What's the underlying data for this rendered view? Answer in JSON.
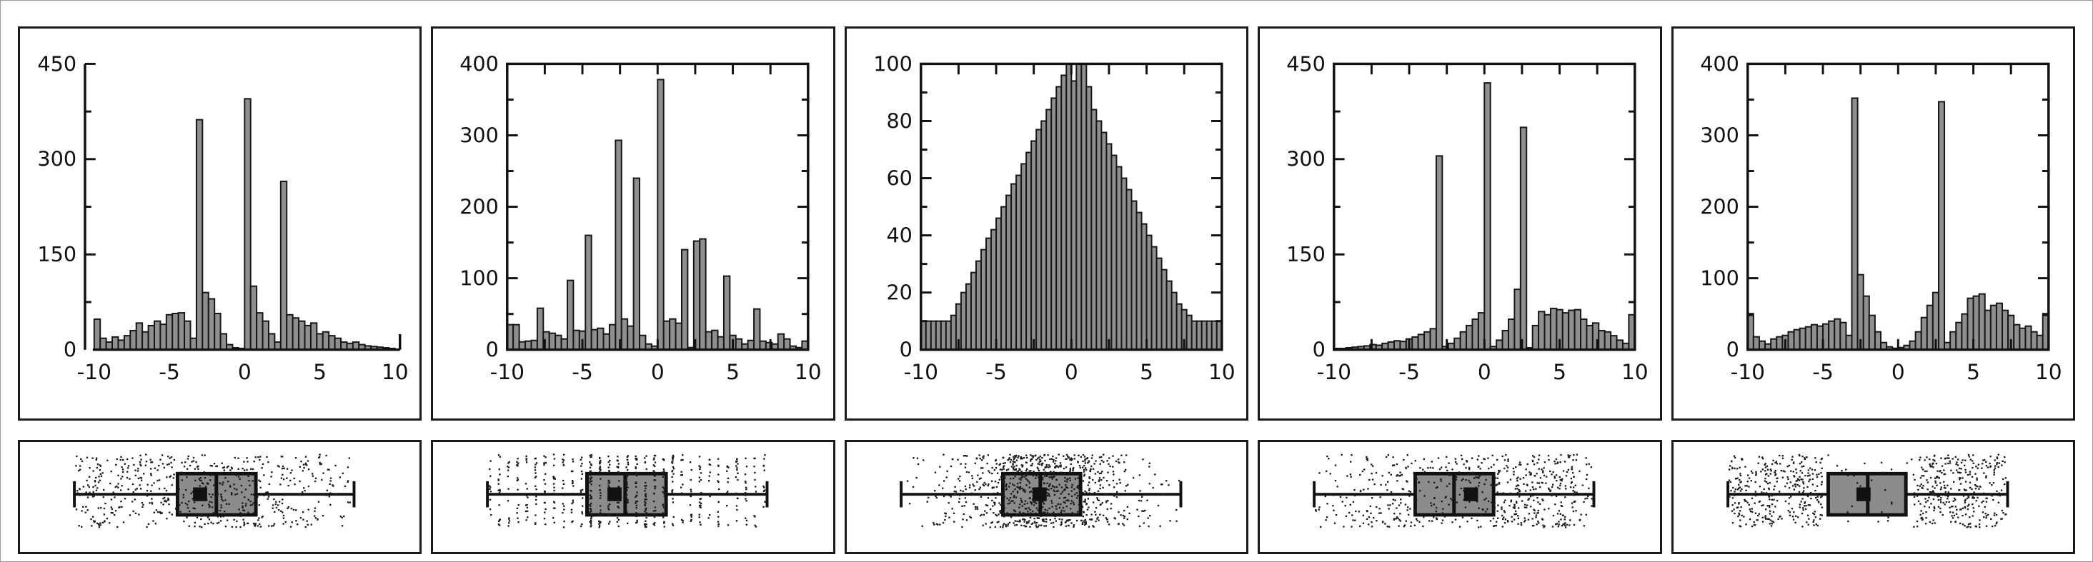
{
  "style": {
    "background": "#ffffff",
    "panel_border": "#1a1a1a",
    "ink": "#111111",
    "bar_fill": "#8f8f8f",
    "bar_stroke": "#161616",
    "box_fill": "#8c8c8c",
    "point_color": "#1c1c1c",
    "tick_label_color": "#111111"
  },
  "chart_data": [
    {
      "panel": 1,
      "type": "bar",
      "subtype": "histogram-with-boxplot",
      "axis_style": "offset",
      "xlim": [
        -10,
        10
      ],
      "ylim": [
        0,
        450
      ],
      "xticks": [
        -10,
        -5,
        0,
        5,
        10
      ],
      "yticks": [
        0,
        150,
        300,
        450
      ],
      "y_minor_step": 75,
      "x_minor_step": 5,
      "bin_start": -10,
      "bin_width": 0.4,
      "bin_counts": [
        48,
        18,
        12,
        20,
        15,
        22,
        30,
        42,
        28,
        38,
        45,
        40,
        55,
        57,
        58,
        45,
        18,
        362,
        90,
        80,
        57,
        25,
        8,
        3,
        2,
        395,
        100,
        58,
        45,
        25,
        12,
        265,
        55,
        50,
        45,
        38,
        42,
        25,
        28,
        22,
        18,
        12,
        10,
        12,
        8,
        6,
        5,
        4,
        3,
        2
      ],
      "boxplot": {
        "whisker_lo": -9.9,
        "q1": -2.6,
        "median": 0.15,
        "q3": 2.95,
        "whisker_hi": 9.9,
        "mean": -1.0,
        "jitter_profile": "broad",
        "jitter_points": 620,
        "seed": 7
      }
    },
    {
      "panel": 2,
      "type": "bar",
      "subtype": "histogram-with-boxplot",
      "axis_style": "boxed",
      "xlim": [
        -10,
        10
      ],
      "ylim": [
        0,
        400
      ],
      "xticks": [
        -10,
        -5,
        0,
        5,
        10
      ],
      "yticks": [
        0,
        100,
        200,
        300,
        400
      ],
      "y_minor_step": 50,
      "x_minor_step": 2.5,
      "bin_start": -10,
      "bin_width": 0.4,
      "bin_counts": [
        35,
        35,
        11,
        12,
        13,
        58,
        25,
        23,
        20,
        15,
        97,
        27,
        26,
        160,
        28,
        30,
        22,
        35,
        293,
        43,
        33,
        240,
        20,
        8,
        5,
        378,
        40,
        43,
        37,
        140,
        3,
        152,
        155,
        25,
        27,
        18,
        103,
        20,
        15,
        8,
        13,
        57,
        12,
        10,
        8,
        22,
        15,
        5,
        3,
        12
      ],
      "boxplot": {
        "whisker_lo": -9.9,
        "q1": -2.85,
        "median": -0.15,
        "q3": 2.75,
        "whisker_hi": 9.9,
        "mean": -0.9,
        "jitter_profile": "banded",
        "jitter_points": 620,
        "seed": 13
      }
    },
    {
      "panel": 3,
      "type": "bar",
      "subtype": "histogram-with-boxplot",
      "axis_style": "boxed",
      "xlim": [
        -10,
        10
      ],
      "ylim": [
        0,
        100
      ],
      "xticks": [
        -10,
        -5,
        0,
        5,
        10
      ],
      "yticks": [
        0,
        20,
        40,
        60,
        80,
        100
      ],
      "y_minor_step": 10,
      "x_minor_step": 2.5,
      "bin_start": -10,
      "bin_width": 0.3333,
      "bin_counts": [
        10,
        10,
        10,
        10,
        10,
        10,
        12,
        16,
        20,
        23,
        27,
        31,
        35,
        39,
        42,
        46,
        50,
        54,
        58,
        61,
        65,
        69,
        73,
        77,
        80,
        84,
        88,
        92,
        96,
        100,
        94,
        100,
        100,
        92,
        84,
        80,
        76,
        72,
        68,
        64,
        60,
        56,
        52,
        48,
        44,
        40,
        36,
        32,
        28,
        24,
        20,
        16,
        14,
        12,
        10,
        10,
        10,
        10,
        10,
        10
      ],
      "boxplot": {
        "whisker_lo": -9.9,
        "q1": -2.7,
        "median": -0.05,
        "q3": 2.8,
        "whisker_hi": 9.9,
        "mean": -0.1,
        "jitter_profile": "gaussian",
        "jitter_points": 900,
        "seed": 23
      }
    },
    {
      "panel": 4,
      "type": "bar",
      "subtype": "histogram-with-boxplot",
      "axis_style": "boxed",
      "xlim": [
        -10,
        10
      ],
      "ylim": [
        0,
        450
      ],
      "xticks": [
        -10,
        -5,
        0,
        5,
        10
      ],
      "yticks": [
        0,
        150,
        300,
        450
      ],
      "y_minor_step": 75,
      "x_minor_step": 2.5,
      "bin_start": -10,
      "bin_width": 0.4,
      "bin_counts": [
        2,
        2,
        3,
        4,
        5,
        6,
        8,
        7,
        10,
        12,
        14,
        13,
        17,
        20,
        24,
        28,
        33,
        305,
        5,
        10,
        18,
        28,
        38,
        48,
        58,
        420,
        5,
        15,
        30,
        48,
        95,
        350,
        3,
        38,
        60,
        55,
        65,
        63,
        58,
        62,
        63,
        48,
        38,
        42,
        30,
        28,
        22,
        15,
        10,
        55
      ],
      "boxplot": {
        "whisker_lo": -9.9,
        "q1": -2.75,
        "median": 0.0,
        "q3": 2.8,
        "whisker_hi": 9.9,
        "mean": 1.2,
        "jitter_profile": "right_heavy",
        "jitter_points": 620,
        "seed": 31
      }
    },
    {
      "panel": 5,
      "type": "bar",
      "subtype": "histogram-with-boxplot",
      "axis_style": "boxed",
      "xlim": [
        -10,
        10
      ],
      "ylim": [
        0,
        400
      ],
      "xticks": [
        -10,
        -5,
        0,
        5,
        10
      ],
      "yticks": [
        0,
        100,
        200,
        300,
        400
      ],
      "y_minor_step": 50,
      "x_minor_step": 2.5,
      "bin_start": -10,
      "bin_width": 0.3846,
      "bin_counts": [
        48,
        18,
        12,
        8,
        15,
        18,
        20,
        25,
        28,
        30,
        32,
        35,
        33,
        36,
        40,
        43,
        38,
        20,
        352,
        105,
        75,
        48,
        25,
        10,
        4,
        2,
        3,
        6,
        12,
        25,
        45,
        62,
        80,
        347,
        10,
        25,
        38,
        50,
        72,
        75,
        78,
        55,
        62,
        65,
        55,
        48,
        35,
        30,
        33,
        25,
        20,
        48
      ],
      "boxplot": {
        "whisker_lo": -9.9,
        "q1": -2.8,
        "median": 0.0,
        "q3": 2.7,
        "whisker_hi": 9.9,
        "mean": -0.3,
        "jitter_profile": "bimodal",
        "jitter_points": 700,
        "seed": 41
      }
    }
  ]
}
